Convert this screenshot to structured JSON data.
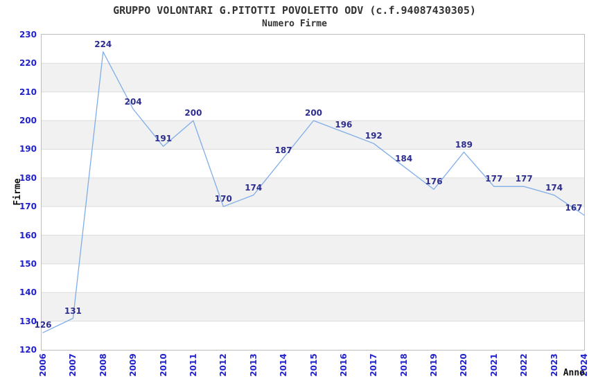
{
  "chart_data": {
    "type": "line",
    "title": "GRUPPO VOLONTARI G.PITOTTI POVOLETTO ODV (c.f.94087430305)",
    "subtitle": "Numero Firme",
    "xlabel": "Anno",
    "ylabel": "Firme",
    "x": [
      2006,
      2007,
      2008,
      2009,
      2010,
      2011,
      2012,
      2013,
      2014,
      2015,
      2016,
      2017,
      2018,
      2019,
      2020,
      2021,
      2022,
      2023,
      2024
    ],
    "series": [
      {
        "name": "Numero Firme",
        "values": [
          126,
          131,
          224,
          204,
          191,
          200,
          170,
          174,
          187,
          200,
          196,
          192,
          184,
          176,
          189,
          177,
          177,
          174,
          167
        ]
      }
    ],
    "ylim": [
      120,
      230
    ],
    "ytick_step": 10,
    "grid": true,
    "legend": "none",
    "value_labels_shown": true,
    "colors": {
      "line": "#7FADE8",
      "tick_label": "#2222CC",
      "value_label": "#2E2E8E",
      "band_gray": "#F1F1F1",
      "band_white": "#FFFFFF",
      "gridline": "#DCDCDC",
      "frame": "#BDBDBD",
      "title_text": "#333333",
      "axis_title_text": "#111111"
    }
  }
}
